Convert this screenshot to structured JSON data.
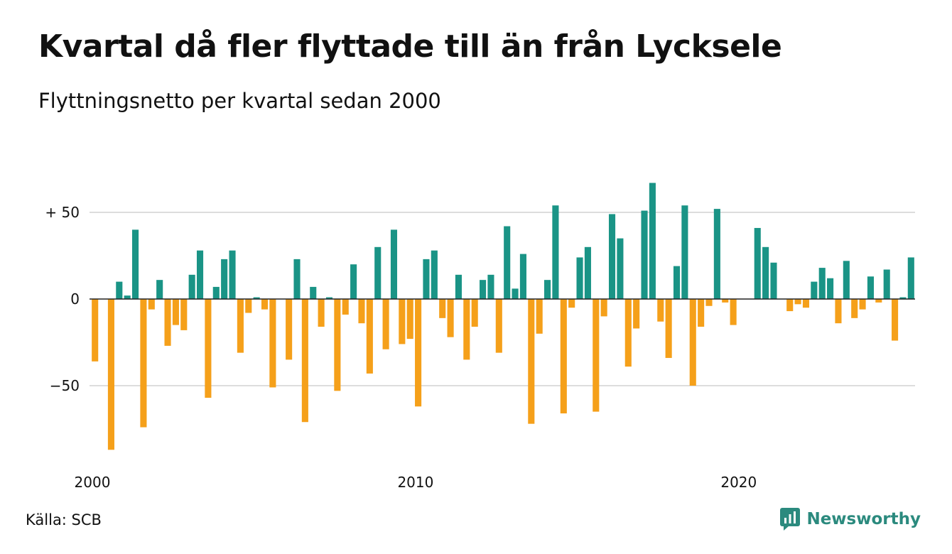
{
  "title": "Kvartal då fler flyttade till än från Lycksele",
  "subtitle": "Flyttningsnetto per kvartal sedan 2000",
  "source": "Källa: SCB",
  "brand": {
    "name": "Newsworthy",
    "icon": "newsworthy-logo-icon"
  },
  "colors": {
    "positive": "#1a9486",
    "negative": "#f5a01a",
    "grid": "#dddddd",
    "zero_line": "#222222",
    "brand": "#2b8a7e"
  },
  "chart_data": {
    "type": "bar",
    "title": "Kvartal då fler flyttade till än från Lycksele",
    "subtitle": "Flyttningsnetto per kvartal sedan 2000",
    "xlabel": "",
    "ylabel": "",
    "x_start_year": 2000,
    "x_tick_labels": [
      "2000",
      "2010",
      "2020"
    ],
    "y_ticks": [
      {
        "value": 50,
        "label": "+ 50"
      },
      {
        "value": 0,
        "label": "0"
      },
      {
        "value": -50,
        "label": "−50"
      }
    ],
    "ylim": [
      -90,
      70
    ],
    "grid": true,
    "legend": "none",
    "series": [
      {
        "values": [
          -36,
          0,
          -87,
          10,
          2,
          40,
          -74,
          -6,
          11,
          -27,
          -15,
          -18,
          14,
          28,
          -57,
          7,
          23,
          28,
          -31,
          -8,
          1,
          -6,
          -51,
          0,
          -35,
          23,
          -71,
          7,
          -16,
          1,
          -53,
          -9,
          20,
          -14,
          -43,
          30,
          -29,
          40,
          -26,
          -23,
          -62,
          23,
          28,
          -11,
          -22,
          14,
          -35,
          -16,
          11,
          14,
          -31,
          42,
          6,
          26,
          -72,
          -20,
          11,
          54,
          -66,
          -5,
          24,
          30,
          -65,
          -10,
          49,
          35,
          -39,
          -17,
          51,
          67,
          -13,
          -34,
          19,
          54,
          -50,
          -16,
          -4,
          52,
          -2,
          -15,
          0,
          0,
          41,
          30,
          21,
          0,
          -7,
          -3,
          -5,
          10,
          18,
          12,
          -14,
          22,
          -11,
          -6,
          13,
          -2,
          17,
          -24,
          1,
          24
        ]
      }
    ]
  }
}
